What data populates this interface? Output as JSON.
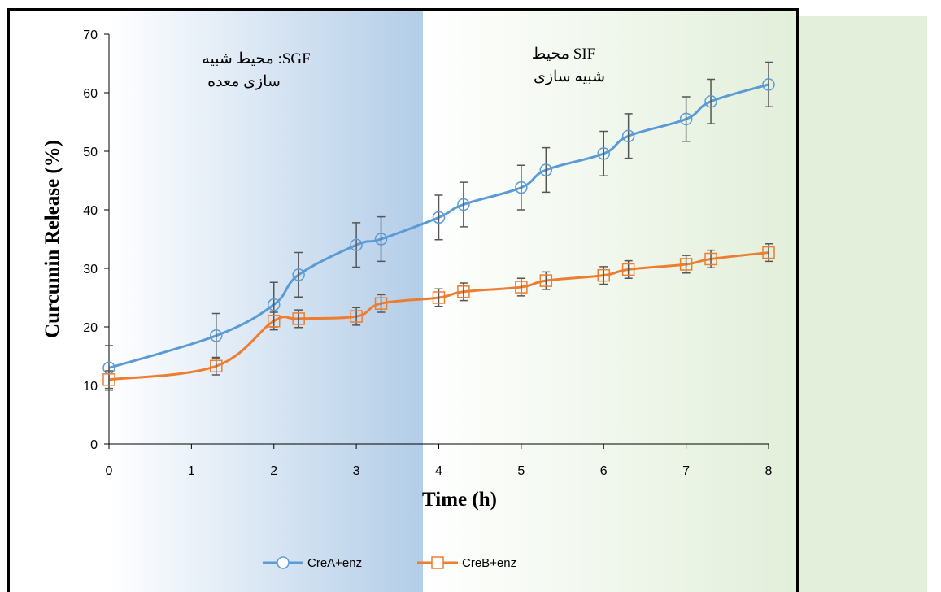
{
  "chart_data": {
    "type": "line",
    "x_label": "Time (h)",
    "y_label": "Curcumin Release (%)",
    "annotations": [
      [
        "محیط شبیه  :SGF",
        "سازی معده"
      ],
      [
        "محیط SIF",
        "شبیه سازی"
      ]
    ],
    "x": [
      0,
      1.3,
      2,
      2.3,
      3,
      3.3,
      4,
      4.3,
      5,
      5.3,
      6,
      6.3,
      7,
      7.3,
      8
    ],
    "series": [
      {
        "name": "CreA+enz",
        "color": "#5b9bd5",
        "marker": "circle",
        "values": [
          13,
          18.5,
          23.8,
          28.9,
          34,
          35,
          38.7,
          40.9,
          43.8,
          46.8,
          49.6,
          52.6,
          55.5,
          58.5,
          61.4
        ],
        "errors": [
          3.8,
          3.8,
          3.8,
          3.8,
          3.8,
          3.8,
          3.8,
          3.8,
          3.8,
          3.8,
          3.8,
          3.8,
          3.8,
          3.8,
          3.8
        ]
      },
      {
        "name": "CreB+enz",
        "color": "#ed7d31",
        "marker": "square",
        "values": [
          11,
          13.3,
          21,
          21.4,
          21.8,
          24,
          25,
          26,
          26.8,
          27.9,
          28.8,
          29.8,
          30.7,
          31.6,
          32.7
        ],
        "errors": [
          1.5,
          1.5,
          1.5,
          1.5,
          1.5,
          1.5,
          1.5,
          1.5,
          1.5,
          1.5,
          1.5,
          1.5,
          1.5,
          1.5,
          1.5
        ]
      }
    ],
    "xlim": [
      0,
      8
    ],
    "xticks": [
      0,
      1,
      2,
      3,
      4,
      5,
      6,
      7,
      8
    ],
    "ylim": [
      0,
      70
    ],
    "yticks": [
      0,
      10,
      20,
      30,
      40,
      50,
      60,
      70
    ],
    "legend": "bottom"
  }
}
